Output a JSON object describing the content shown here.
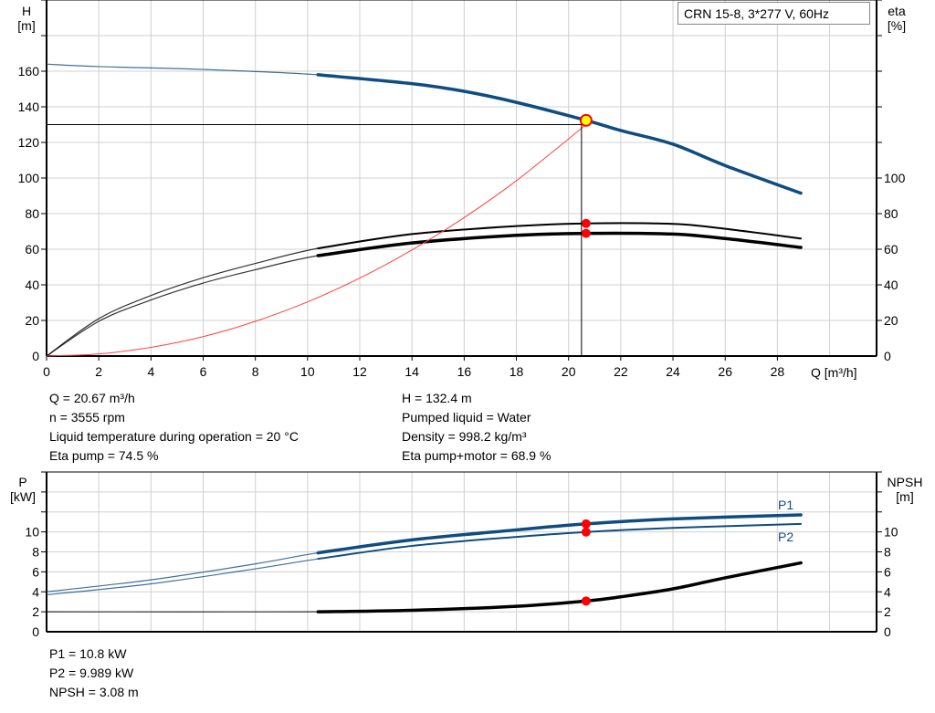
{
  "title_box": "CRN 15-8, 3*277 V, 60Hz",
  "colors": {
    "head": "#0f4c81",
    "eta": "#000000",
    "system": "#ff4040",
    "duty_marker_fill": "#ffff00",
    "duty_marker_stroke": "#ff0000",
    "point": "#ff0000",
    "grid": "#d0d0d0"
  },
  "chart_data": [
    {
      "type": "line",
      "xlabel": "Q [m³/h]",
      "ylabel_left": [
        "H",
        "[m]"
      ],
      "ylabel_right": [
        "eta",
        "[%]"
      ],
      "xlim": [
        0,
        31.8
      ],
      "ylim": [
        0,
        200
      ],
      "x_ticks": [
        0,
        2,
        4,
        6,
        8,
        10,
        12,
        14,
        16,
        18,
        20,
        22,
        24,
        26,
        28
      ],
      "y_ticks_left": [
        0,
        20,
        40,
        60,
        80,
        100,
        120,
        140,
        160
      ],
      "y_ticks_right": [
        0,
        20,
        40,
        60,
        80,
        100
      ],
      "grid": true,
      "thick_from_q": 10.4,
      "series": [
        {
          "key": "head",
          "axis": "left",
          "points": [
            [
              0,
              164
            ],
            [
              2,
              162.6
            ],
            [
              6,
              161
            ],
            [
              10.4,
              158
            ],
            [
              14,
              153
            ],
            [
              16,
              148.7
            ],
            [
              18,
              142.5
            ],
            [
              20.67,
              132.4
            ],
            [
              22,
              126.7
            ],
            [
              24,
              119
            ],
            [
              26,
              107
            ],
            [
              28.9,
              91.5
            ]
          ]
        },
        {
          "key": "eta_pump",
          "axis": "right",
          "points": [
            [
              0,
              0
            ],
            [
              2,
              21
            ],
            [
              4,
              34
            ],
            [
              6,
              44
            ],
            [
              8,
              52
            ],
            [
              10.4,
              60.5
            ],
            [
              14,
              68.5
            ],
            [
              18,
              73
            ],
            [
              20.67,
              74.5
            ],
            [
              24,
              74.2
            ],
            [
              26,
              71.5
            ],
            [
              28.9,
              66
            ]
          ]
        },
        {
          "key": "eta_pump_motor",
          "axis": "right",
          "points": [
            [
              0,
              0
            ],
            [
              2,
              19.5
            ],
            [
              4,
              31.5
            ],
            [
              6,
              41
            ],
            [
              8,
              48.5
            ],
            [
              10.4,
              56.4
            ],
            [
              14,
              63.5
            ],
            [
              18,
              67.8
            ],
            [
              20.67,
              68.9
            ],
            [
              24,
              68.5
            ],
            [
              26,
              66
            ],
            [
              28.9,
              61
            ]
          ]
        },
        {
          "key": "system",
          "axis": "left",
          "points": [
            [
              0,
              0
            ],
            [
              2,
              1.2
            ],
            [
              4,
              4.9
            ],
            [
              6,
              10.9
            ],
            [
              8,
              19.5
            ],
            [
              10,
              30.4
            ],
            [
              12,
              43.8
            ],
            [
              14,
              59.6
            ],
            [
              16,
              77.8
            ],
            [
              18,
              98.5
            ],
            [
              20.67,
              130
            ]
          ]
        }
      ],
      "duty_point": {
        "q": 20.67,
        "h": 132.4,
        "eta_pump": 74.5,
        "eta_pump_motor": 68.9
      }
    },
    {
      "type": "line",
      "ylabel_left": [
        "P",
        "[kW]"
      ],
      "ylabel_right": [
        "NPSH",
        "[m]"
      ],
      "xlim": [
        0,
        31.8
      ],
      "ylim": [
        0,
        16
      ],
      "y_ticks_left": [
        0,
        2,
        4,
        6,
        8,
        10
      ],
      "y_ticks_right": [
        0,
        2,
        4,
        6,
        8,
        10
      ],
      "grid": true,
      "thick_from_q": 10.4,
      "series": [
        {
          "key": "p1",
          "name": "P1",
          "points": [
            [
              0,
              4.0
            ],
            [
              4,
              5.2
            ],
            [
              8,
              6.8
            ],
            [
              10.4,
              7.9
            ],
            [
              14,
              9.2
            ],
            [
              18,
              10.2
            ],
            [
              20.67,
              10.8
            ],
            [
              24,
              11.3
            ],
            [
              28.9,
              11.7
            ]
          ]
        },
        {
          "key": "p2",
          "name": "P2",
          "points": [
            [
              0,
              3.7
            ],
            [
              4,
              4.8
            ],
            [
              8,
              6.3
            ],
            [
              10.4,
              7.3
            ],
            [
              14,
              8.6
            ],
            [
              18,
              9.5
            ],
            [
              20.67,
              9.989
            ],
            [
              24,
              10.4
            ],
            [
              28.9,
              10.8
            ]
          ]
        },
        {
          "key": "npsh",
          "points": [
            [
              0,
              2.0
            ],
            [
              10.4,
              2.0
            ],
            [
              14,
              2.15
            ],
            [
              18,
              2.55
            ],
            [
              20.67,
              3.08
            ],
            [
              22,
              3.5
            ],
            [
              24,
              4.3
            ],
            [
              26,
              5.4
            ],
            [
              28.9,
              6.9
            ]
          ]
        }
      ],
      "duty_point": {
        "q": 20.67,
        "p1": 10.8,
        "p2": 9.989,
        "npsh": 3.08
      }
    }
  ],
  "info_top_left": [
    "Q = 20.67 m³/h",
    "n = 3555 rpm",
    "Liquid temperature during operation = 20 °C",
    "Eta pump = 74.5 %"
  ],
  "info_top_right": [
    "H = 132.4 m",
    "Pumped liquid = Water",
    "Density = 998.2 kg/m³",
    "Eta pump+motor = 68.9 %"
  ],
  "info_bottom": [
    "P1 = 10.8 kW",
    "P2 = 9.989 kW",
    "NPSH = 3.08 m"
  ]
}
